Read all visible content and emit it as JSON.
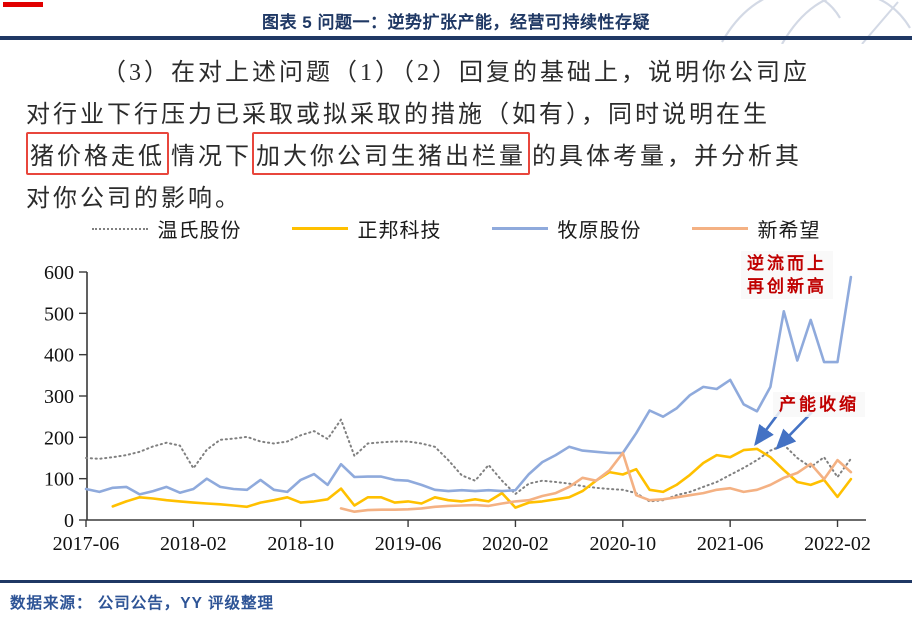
{
  "header": {
    "title": "图表 5 问题一：逆势扩张产能，经营可持续性存疑"
  },
  "paragraph": {
    "line1": "（3）在对上述问题（1）（2）回复的基础上，说明你公司应",
    "line2": "对行业下行压力已采取或拟采取的措施（如有），同时说明在生",
    "line3_box1": "猪价格走低",
    "line3_mid": "情况下",
    "line3_box2": "加大你公司生猪出栏量",
    "line3_tail": "的具体考量，并分析其",
    "line4": "对你公司的影响。"
  },
  "colors": {
    "title_navy": "#1F3864",
    "annotation_red": "#C00000",
    "red_box": "#E8463C",
    "red_bar": "#E10000",
    "source_blue": "#2E5496",
    "arrow_blue": "#4472C4"
  },
  "chart_data": {
    "type": "line",
    "x_unit": "month",
    "x_start": "2017-06",
    "x_end": "2022-03",
    "x_tick_labels": [
      "2017-06",
      "2018-02",
      "2018-10",
      "2019-06",
      "2020-02",
      "2020-10",
      "2021-06",
      "2022-02"
    ],
    "y_ticks": [
      0,
      100,
      200,
      300,
      400,
      500,
      600
    ],
    "ylim": [
      0,
      600
    ],
    "grid": false,
    "legend_position": "top",
    "arrow_color": "#4472C4",
    "series": [
      {
        "name": "温氏股份",
        "color": "#808080",
        "style": "dotted",
        "values": [
          150,
          148,
          152,
          157,
          165,
          178,
          187,
          180,
          125,
          170,
          194,
          197,
          201,
          190,
          185,
          190,
          205,
          215,
          196,
          243,
          155,
          185,
          188,
          190,
          190,
          185,
          177,
          145,
          108,
          95,
          133,
          95,
          63,
          88,
          95,
          92,
          88,
          82,
          78,
          75,
          73,
          65,
          45,
          48,
          60,
          68,
          80,
          92,
          109,
          126,
          145,
          168,
          182,
          150,
          128,
          152,
          104,
          148
        ]
      },
      {
        "name": "正邦科技",
        "color": "#FFC000",
        "style": "solid",
        "values": [
          null,
          null,
          33,
          45,
          55,
          52,
          48,
          45,
          42,
          40,
          38,
          35,
          32,
          42,
          48,
          55,
          42,
          45,
          50,
          76,
          35,
          55,
          55,
          42,
          45,
          40,
          55,
          48,
          45,
          50,
          45,
          65,
          30,
          42,
          45,
          50,
          55,
          70,
          95,
          116,
          110,
          123,
          73,
          68,
          85,
          109,
          138,
          157,
          152,
          169,
          172,
          152,
          121,
          92,
          85,
          97,
          56,
          99
        ]
      },
      {
        "name": "牧原股份",
        "color": "#8FAADC",
        "style": "solid",
        "values": [
          75,
          68,
          78,
          80,
          62,
          70,
          80,
          66,
          75,
          100,
          80,
          75,
          73,
          97,
          73,
          68,
          97,
          111,
          85,
          135,
          104,
          105,
          105,
          97,
          95,
          85,
          73,
          70,
          72,
          70,
          72,
          70,
          72,
          111,
          140,
          157,
          177,
          168,
          165,
          162,
          162,
          210,
          265,
          250,
          270,
          302,
          322,
          317,
          339,
          280,
          263,
          322,
          505,
          386,
          484,
          382,
          382,
          588
        ]
      },
      {
        "name": "新希望",
        "color": "#F4B183",
        "style": "solid",
        "values": [
          null,
          null,
          null,
          null,
          null,
          null,
          null,
          null,
          null,
          null,
          null,
          null,
          null,
          null,
          null,
          null,
          null,
          null,
          null,
          28,
          20,
          24,
          25,
          25,
          26,
          28,
          32,
          34,
          35,
          36,
          34,
          40,
          45,
          48,
          58,
          65,
          80,
          102,
          95,
          120,
          162,
          60,
          48,
          50,
          55,
          60,
          65,
          73,
          77,
          68,
          73,
          85,
          102,
          114,
          136,
          99,
          145,
          116
        ]
      }
    ],
    "annotations": {
      "rise": {
        "line1": "逆流而上",
        "line2": "再创新高"
      },
      "shrink": {
        "text": "产能收缩",
        "arrows": [
          {
            "from": [
              51.9,
              271
            ],
            "to": [
              49.9,
              184
            ]
          },
          {
            "from": [
              54.1,
              261
            ],
            "to": [
              51.5,
              174
            ]
          }
        ]
      }
    }
  },
  "footer": {
    "source": "数据来源： 公司公告，YY 评级整理"
  }
}
